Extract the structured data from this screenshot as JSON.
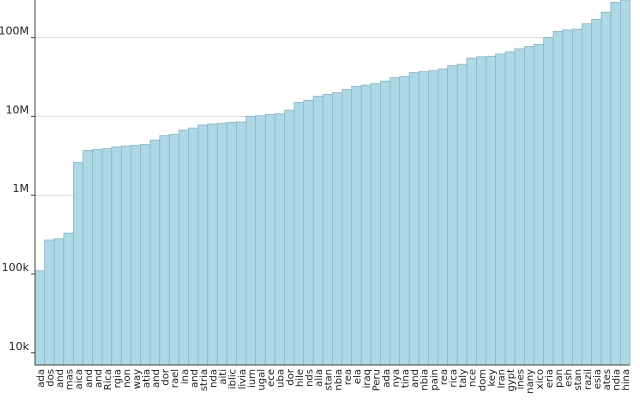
{
  "chart_data": {
    "type": "bar",
    "categories": [
      "ada",
      "dos",
      "and",
      "mas",
      "aica",
      "and",
      "and",
      "Rica",
      "rgia",
      "non",
      "way",
      "atia",
      "and",
      "dor",
      "rael",
      "ina",
      "and",
      "stria",
      "nda",
      "aiti",
      "iblic",
      "livia",
      "ium",
      "ugal",
      "ece",
      "uba",
      "dor",
      "hile",
      "nds",
      "alia",
      "stan",
      "nbia",
      "rea",
      "ela",
      "iraq",
      "Peru",
      "ada",
      "nya",
      "tina",
      "and",
      "nbia",
      "pain",
      "rea",
      "rica",
      "taly",
      "nce",
      "dom",
      "key",
      "Iran",
      "gypt",
      "ines",
      "nany",
      "xico",
      "eria",
      "pan",
      "esh",
      "stan",
      "razil",
      "esia",
      "ates",
      "ndia",
      "hina"
    ],
    "values": [
      110000,
      270000,
      280000,
      330000,
      2600000,
      3700000,
      3800000,
      3900000,
      4100000,
      4200000,
      4300000,
      4400000,
      5000000,
      5700000,
      5900000,
      6700000,
      7100000,
      7800000,
      8000000,
      8200000,
      8400000,
      8500000,
      10000000,
      10200000,
      10600000,
      10800000,
      12000000,
      15000000,
      16000000,
      18000000,
      19000000,
      20000000,
      22000000,
      24000000,
      25000000,
      26000000,
      28000000,
      31000000,
      32000000,
      36000000,
      37000000,
      38000000,
      40000000,
      44000000,
      46000000,
      55000000,
      57000000,
      58000000,
      62000000,
      66000000,
      72000000,
      77000000,
      82000000,
      100000000,
      120000000,
      125000000,
      128000000,
      150000000,
      170000000,
      210000000,
      280000000,
      300000000
    ],
    "color": "#add8e6",
    "log_scale": true,
    "grid": true,
    "ylim": [
      7000,
      300000000
    ],
    "yticks": [
      {
        "value": 10000,
        "label": "10k"
      },
      {
        "value": 100000,
        "label": "100k"
      },
      {
        "value": 1000000,
        "label": "1M"
      },
      {
        "value": 10000000,
        "label": "10M"
      },
      {
        "value": 100000000,
        "label": "100M"
      }
    ]
  }
}
